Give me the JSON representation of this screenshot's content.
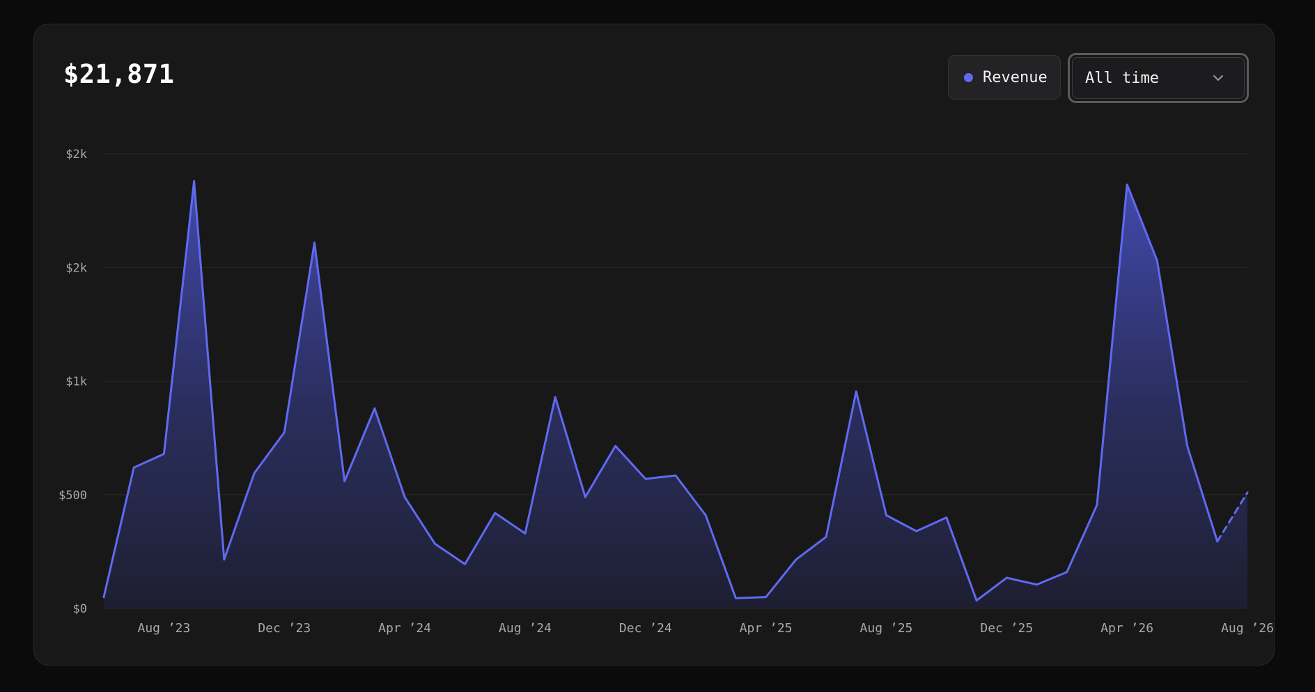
{
  "header": {
    "total": "$21,871"
  },
  "legend": {
    "label": "Revenue"
  },
  "range_select": {
    "value": "All time",
    "icon": "chevron-down-icon"
  },
  "colors": {
    "accent": "#5f6af0",
    "background": "#181818",
    "grid": "#2a2a2c"
  },
  "chart_data": {
    "type": "area",
    "title": "",
    "xlabel": "",
    "ylabel": "",
    "grid": true,
    "legend_position": "top-right",
    "ylim": [
      0,
      2000
    ],
    "y_tick_values": [
      0,
      500,
      1000,
      1500,
      2000
    ],
    "y_tick_labels": [
      "$0",
      "$500",
      "$1k",
      "$2k",
      "$2k"
    ],
    "x_tick_values": [
      "2023-08",
      "2023-12",
      "2024-04",
      "2024-08",
      "2024-12",
      "2025-04",
      "2025-08",
      "2025-12",
      "2026-04",
      "2026-08"
    ],
    "x_tick_labels": [
      "Aug ’23",
      "Dec ’23",
      "Apr ’24",
      "Aug ’24",
      "Dec ’24",
      "Apr ’25",
      "Aug ’25",
      "Dec ’25",
      "Apr ’26",
      "Aug ’26"
    ],
    "series": [
      {
        "name": "Revenue",
        "x": [
          "2023-06",
          "2023-07",
          "2023-08",
          "2023-09",
          "2023-10",
          "2023-11",
          "2023-12",
          "2024-01",
          "2024-02",
          "2024-03",
          "2024-04",
          "2024-05",
          "2024-06",
          "2024-07",
          "2024-08",
          "2024-09",
          "2024-10",
          "2024-11",
          "2024-12",
          "2025-01",
          "2025-02",
          "2025-03",
          "2025-04",
          "2025-05",
          "2025-06",
          "2025-07",
          "2025-08",
          "2025-09",
          "2025-10",
          "2025-11",
          "2025-12",
          "2026-01",
          "2026-02",
          "2026-03",
          "2026-04",
          "2026-05",
          "2026-06",
          "2026-07",
          "2026-08"
        ],
        "values": [
          50,
          620,
          680,
          1880,
          215,
          595,
          775,
          1610,
          560,
          880,
          490,
          285,
          195,
          420,
          330,
          930,
          490,
          715,
          570,
          585,
          410,
          45,
          50,
          215,
          315,
          955,
          410,
          340,
          400,
          35,
          135,
          105,
          160,
          455,
          1865,
          1530,
          715,
          295,
          510
        ],
        "projected_from_index": 37
      }
    ]
  }
}
